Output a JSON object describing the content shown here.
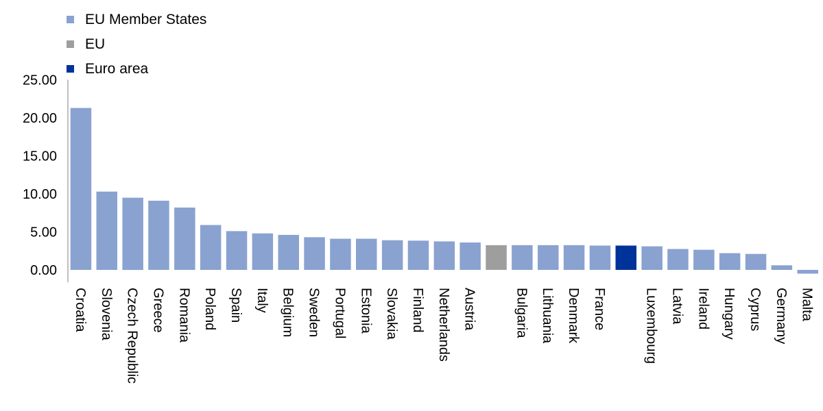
{
  "chart_data": {
    "type": "bar",
    "title": "",
    "xlabel": "",
    "ylabel": "",
    "ylim": [
      0,
      25
    ],
    "yticks": [
      "0.00",
      "5.00",
      "10.00",
      "15.00",
      "20.00",
      "25.00"
    ],
    "grid": false,
    "legend_position": "top-left",
    "legend": [
      {
        "label": "EU Member States",
        "color": "#8aa2d0"
      },
      {
        "label": "EU",
        "color": "#9e9e9e"
      },
      {
        "label": "Euro area",
        "color": "#003399"
      }
    ],
    "categories": [
      "Croatia",
      "Slovenia",
      "Czech Republic",
      "Greece",
      "Romania",
      "Poland",
      "Spain",
      "Italy",
      "Belgium",
      "Sweden",
      "Portugal",
      "Estonia",
      "Slovakia",
      "Finland",
      "Netherlands",
      "Austria",
      "",
      "Bulgaria",
      "Lithuania",
      "Denmark",
      "France",
      "",
      "Luxembourg",
      "Latvia",
      "Ireland",
      "Hungary",
      "Cyprus",
      "Germany",
      "Malta"
    ],
    "groups": [
      "member",
      "member",
      "member",
      "member",
      "member",
      "member",
      "member",
      "member",
      "member",
      "member",
      "member",
      "member",
      "member",
      "member",
      "member",
      "member",
      "eu",
      "member",
      "member",
      "member",
      "member",
      "euro",
      "member",
      "member",
      "member",
      "member",
      "member",
      "member",
      "member"
    ],
    "values": [
      21.3,
      10.3,
      9.5,
      9.1,
      8.2,
      5.9,
      5.1,
      4.8,
      4.6,
      4.3,
      4.1,
      4.1,
      3.9,
      3.85,
      3.75,
      3.6,
      3.25,
      3.25,
      3.25,
      3.25,
      3.2,
      3.2,
      3.1,
      2.75,
      2.65,
      2.2,
      2.1,
      0.6,
      -0.5
    ]
  }
}
